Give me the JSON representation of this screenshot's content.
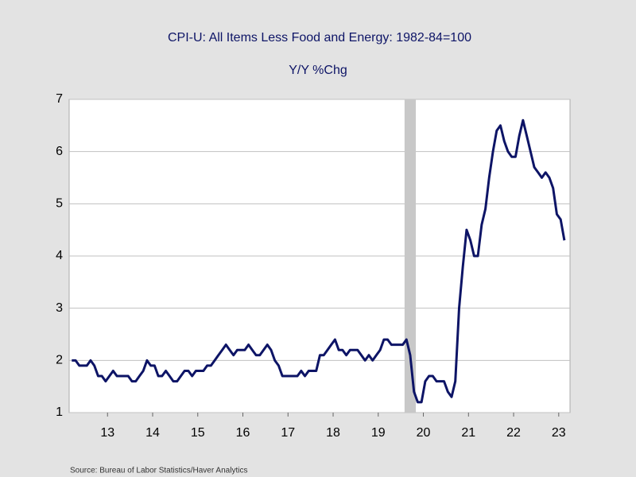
{
  "chart_data": {
    "type": "line",
    "title": "CPI-U: All Items Less Food and Energy: 1982-84=100",
    "subtitle": "Y/Y %Chg",
    "source": "Source:  Bureau of Labor Statistics/Haver Analytics",
    "x": [
      2012.708,
      2012.792,
      2012.875,
      2012.958,
      2013.042,
      2013.125,
      2013.208,
      2013.292,
      2013.375,
      2013.458,
      2013.542,
      2013.625,
      2013.708,
      2013.792,
      2013.875,
      2013.958,
      2014.042,
      2014.125,
      2014.208,
      2014.292,
      2014.375,
      2014.458,
      2014.542,
      2014.625,
      2014.708,
      2014.792,
      2014.875,
      2014.958,
      2015.042,
      2015.125,
      2015.208,
      2015.292,
      2015.375,
      2015.458,
      2015.542,
      2015.625,
      2015.708,
      2015.792,
      2015.875,
      2015.958,
      2016.042,
      2016.125,
      2016.208,
      2016.292,
      2016.375,
      2016.458,
      2016.542,
      2016.625,
      2016.708,
      2016.792,
      2016.875,
      2016.958,
      2017.042,
      2017.125,
      2017.208,
      2017.292,
      2017.375,
      2017.458,
      2017.542,
      2017.625,
      2017.708,
      2017.792,
      2017.875,
      2017.958,
      2018.042,
      2018.125,
      2018.208,
      2018.292,
      2018.375,
      2018.458,
      2018.542,
      2018.625,
      2018.708,
      2018.792,
      2018.875,
      2018.958,
      2019.042,
      2019.125,
      2019.208,
      2019.292,
      2019.375,
      2019.458,
      2019.542,
      2019.625,
      2019.708,
      2019.792,
      2019.875,
      2019.958,
      2020.042,
      2020.125,
      2020.208,
      2020.292,
      2020.375,
      2020.458,
      2020.542,
      2020.625,
      2020.708,
      2020.792,
      2020.875,
      2020.958,
      2021.042,
      2021.125,
      2021.208,
      2021.292,
      2021.375,
      2021.458,
      2021.542,
      2021.625,
      2021.708,
      2021.792,
      2021.875,
      2021.958,
      2022.042,
      2022.125,
      2022.208,
      2022.292,
      2022.375,
      2022.458,
      2022.542,
      2022.625,
      2022.708,
      2022.792,
      2022.875,
      2022.958,
      2023.042,
      2023.125,
      2023.208,
      2023.292,
      2023.375,
      2023.458,
      2023.542,
      2023.625
    ],
    "series": [
      {
        "name": "CPI-U: All Items Less Food and Energy",
        "color": "#0d1466",
        "values": [
          2.0,
          2.0,
          1.9,
          1.9,
          1.9,
          2.0,
          1.9,
          1.7,
          1.7,
          1.6,
          1.7,
          1.8,
          1.7,
          1.7,
          1.7,
          1.7,
          1.6,
          1.6,
          1.7,
          1.8,
          2.0,
          1.9,
          1.9,
          1.7,
          1.7,
          1.8,
          1.7,
          1.6,
          1.6,
          1.7,
          1.8,
          1.8,
          1.7,
          1.8,
          1.8,
          1.8,
          1.9,
          1.9,
          2.0,
          2.1,
          2.2,
          2.3,
          2.2,
          2.1,
          2.2,
          2.2,
          2.2,
          2.3,
          2.2,
          2.1,
          2.1,
          2.2,
          2.3,
          2.2,
          2.0,
          1.9,
          1.7,
          1.7,
          1.7,
          1.7,
          1.7,
          1.8,
          1.7,
          1.8,
          1.8,
          1.8,
          2.1,
          2.1,
          2.2,
          2.3,
          2.4,
          2.2,
          2.2,
          2.1,
          2.2,
          2.2,
          2.2,
          2.1,
          2.0,
          2.1,
          2.0,
          2.1,
          2.2,
          2.4,
          2.4,
          2.3,
          2.3,
          2.3,
          2.3,
          2.4,
          2.1,
          1.4,
          1.2,
          1.2,
          1.6,
          1.7,
          1.7,
          1.6,
          1.6,
          1.6,
          1.4,
          1.3,
          1.6,
          3.0,
          3.8,
          4.5,
          4.3,
          4.0,
          4.0,
          4.6,
          4.9,
          5.5,
          6.0,
          6.4,
          6.5,
          6.2,
          6.0,
          5.9,
          5.9,
          6.3,
          6.6,
          6.3,
          6.0,
          5.7,
          5.6,
          5.5,
          5.6,
          5.5,
          5.3,
          4.8,
          4.7,
          4.3
        ]
      }
    ],
    "recession": [
      2020.083,
      2020.333
    ],
    "recession_color": "#c8c8c8",
    "xlim": [
      2012.65,
      2023.75
    ],
    "xticks": [
      {
        "value": 2013.5,
        "label": "13"
      },
      {
        "value": 2014.5,
        "label": "14"
      },
      {
        "value": 2015.5,
        "label": "15"
      },
      {
        "value": 2016.5,
        "label": "16"
      },
      {
        "value": 2017.5,
        "label": "17"
      },
      {
        "value": 2018.5,
        "label": "18"
      },
      {
        "value": 2019.5,
        "label": "19"
      },
      {
        "value": 2020.5,
        "label": "20"
      },
      {
        "value": 2021.5,
        "label": "21"
      },
      {
        "value": 2022.5,
        "label": "22"
      },
      {
        "value": 2023.5,
        "label": "23"
      }
    ],
    "ylim": [
      1,
      7
    ],
    "yticks": [
      1,
      2,
      3,
      4,
      5,
      6,
      7
    ],
    "grid": true
  }
}
